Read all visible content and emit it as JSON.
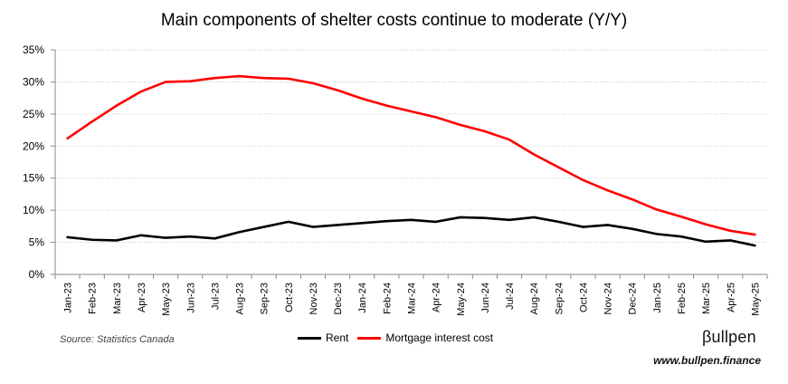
{
  "chart_data": {
    "type": "line",
    "title": "Main components of shelter costs continue to moderate (Y/Y)",
    "categories": [
      "Jan-23",
      "Feb-23",
      "Mar-23",
      "Apr-23",
      "May-23",
      "Jun-23",
      "Jul-23",
      "Aug-23",
      "Sep-23",
      "Oct-23",
      "Nov-23",
      "Dec-23",
      "Jan-24",
      "Feb-24",
      "Mar-24",
      "Apr-24",
      "May-24",
      "Jun-24",
      "Jul-24",
      "Aug-24",
      "Sep-24",
      "Oct-24",
      "Nov-24",
      "Dec-24",
      "Jan-25",
      "Feb-25",
      "Mar-25",
      "Apr-25",
      "May-25"
    ],
    "y_ticks": [
      "0%",
      "5%",
      "10%",
      "15%",
      "20%",
      "25%",
      "30%",
      "35%"
    ],
    "ylim": [
      0,
      35
    ],
    "grid": "horizontal dotted",
    "legend_position": "bottom",
    "series": [
      {
        "name": "Rent",
        "color": "#000000",
        "values": [
          5.8,
          5.4,
          5.3,
          6.1,
          5.7,
          5.9,
          5.6,
          6.6,
          7.4,
          8.2,
          7.4,
          7.7,
          8.0,
          8.3,
          8.5,
          8.2,
          8.9,
          8.8,
          8.5,
          8.9,
          8.2,
          7.4,
          7.7,
          7.1,
          6.3,
          5.9,
          5.1,
          5.3,
          4.5
        ]
      },
      {
        "name": "Mortgage interest cost",
        "color": "#ff0000",
        "values": [
          21.2,
          23.8,
          26.3,
          28.5,
          30.0,
          30.1,
          30.6,
          30.9,
          30.6,
          30.5,
          29.8,
          28.7,
          27.4,
          26.3,
          25.4,
          24.5,
          23.3,
          22.3,
          21.0,
          18.7,
          16.7,
          14.7,
          13.1,
          11.7,
          10.1,
          9.0,
          7.8,
          6.8,
          6.2
        ]
      }
    ]
  },
  "footer": {
    "source": "Source: Statistics Canada",
    "brand": "βullpen",
    "url": "www.bullpen.finance"
  }
}
